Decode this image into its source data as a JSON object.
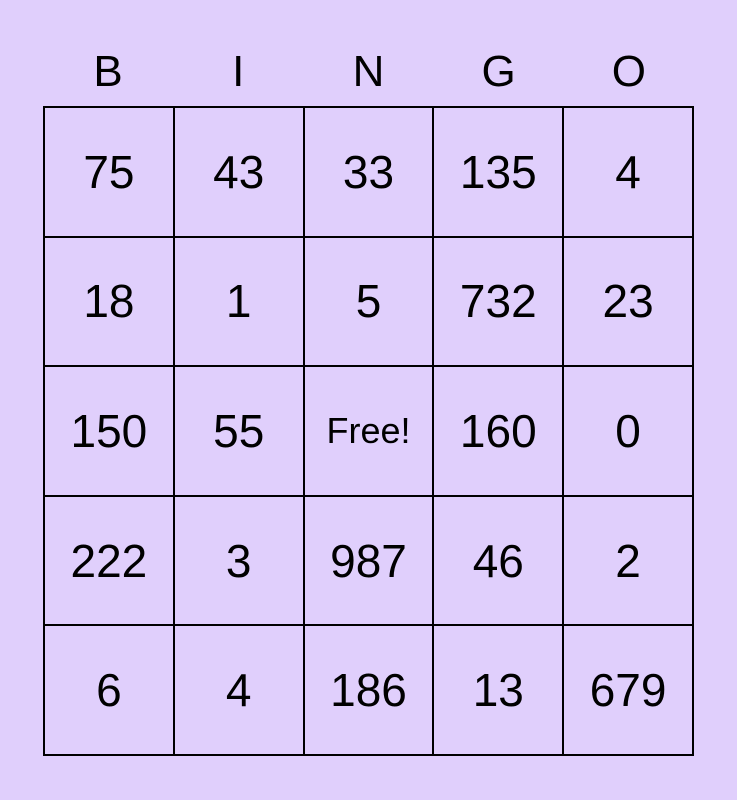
{
  "colors": {
    "background": "#e0cffc",
    "grid": "#000000",
    "text": "#000000"
  },
  "header": [
    "B",
    "I",
    "N",
    "G",
    "O"
  ],
  "rows": [
    [
      "75",
      "43",
      "33",
      "135",
      "4"
    ],
    [
      "18",
      "1",
      "5",
      "732",
      "23"
    ],
    [
      "150",
      "55",
      "Free!",
      "160",
      "0"
    ],
    [
      "222",
      "3",
      "987",
      "46",
      "2"
    ],
    [
      "6",
      "4",
      "186",
      "13",
      "679"
    ]
  ]
}
